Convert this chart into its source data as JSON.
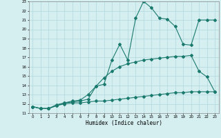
{
  "line1_x": [
    0,
    1,
    2,
    3,
    4,
    5,
    6,
    7,
    8,
    9,
    10,
    11,
    12,
    13,
    14,
    15,
    16,
    17,
    18,
    19,
    20,
    21,
    22,
    23
  ],
  "line1_y": [
    11.7,
    11.5,
    11.5,
    11.8,
    12.1,
    12.2,
    12.3,
    12.5,
    13.9,
    14.1,
    16.7,
    18.4,
    16.7,
    21.2,
    23.0,
    22.3,
    21.2,
    21.1,
    20.3,
    18.4,
    18.3,
    21.0,
    21.0,
    21.0
  ],
  "line2_x": [
    0,
    1,
    2,
    3,
    4,
    5,
    6,
    7,
    8,
    9,
    10,
    11,
    12,
    13,
    14,
    15,
    16,
    17,
    18,
    19,
    20,
    21,
    22,
    23
  ],
  "line2_y": [
    11.7,
    11.5,
    11.5,
    11.9,
    12.1,
    12.3,
    12.4,
    13.0,
    13.9,
    14.8,
    15.5,
    16.0,
    16.3,
    16.5,
    16.7,
    16.8,
    16.9,
    17.0,
    17.1,
    17.1,
    17.2,
    15.5,
    14.9,
    13.3
  ],
  "line3_x": [
    0,
    1,
    2,
    3,
    4,
    5,
    6,
    7,
    8,
    9,
    10,
    11,
    12,
    13,
    14,
    15,
    16,
    17,
    18,
    19,
    20,
    21,
    22,
    23
  ],
  "line3_y": [
    11.7,
    11.5,
    11.5,
    11.8,
    12.0,
    12.1,
    12.1,
    12.2,
    12.3,
    12.3,
    12.4,
    12.5,
    12.6,
    12.7,
    12.8,
    12.9,
    13.0,
    13.1,
    13.2,
    13.2,
    13.3,
    13.3,
    13.3,
    13.3
  ],
  "color": "#1a7a6e",
  "bg_color": "#d5eef0",
  "grid_color": "#b0d8dc",
  "xlabel": "Humidex (Indice chaleur)",
  "xlim": [
    -0.5,
    23.5
  ],
  "ylim": [
    11,
    23
  ],
  "yticks": [
    11,
    12,
    13,
    14,
    15,
    16,
    17,
    18,
    19,
    20,
    21,
    22,
    23
  ],
  "xticks": [
    0,
    1,
    2,
    3,
    4,
    5,
    6,
    7,
    8,
    9,
    10,
    11,
    12,
    13,
    14,
    15,
    16,
    17,
    18,
    19,
    20,
    21,
    22,
    23
  ]
}
